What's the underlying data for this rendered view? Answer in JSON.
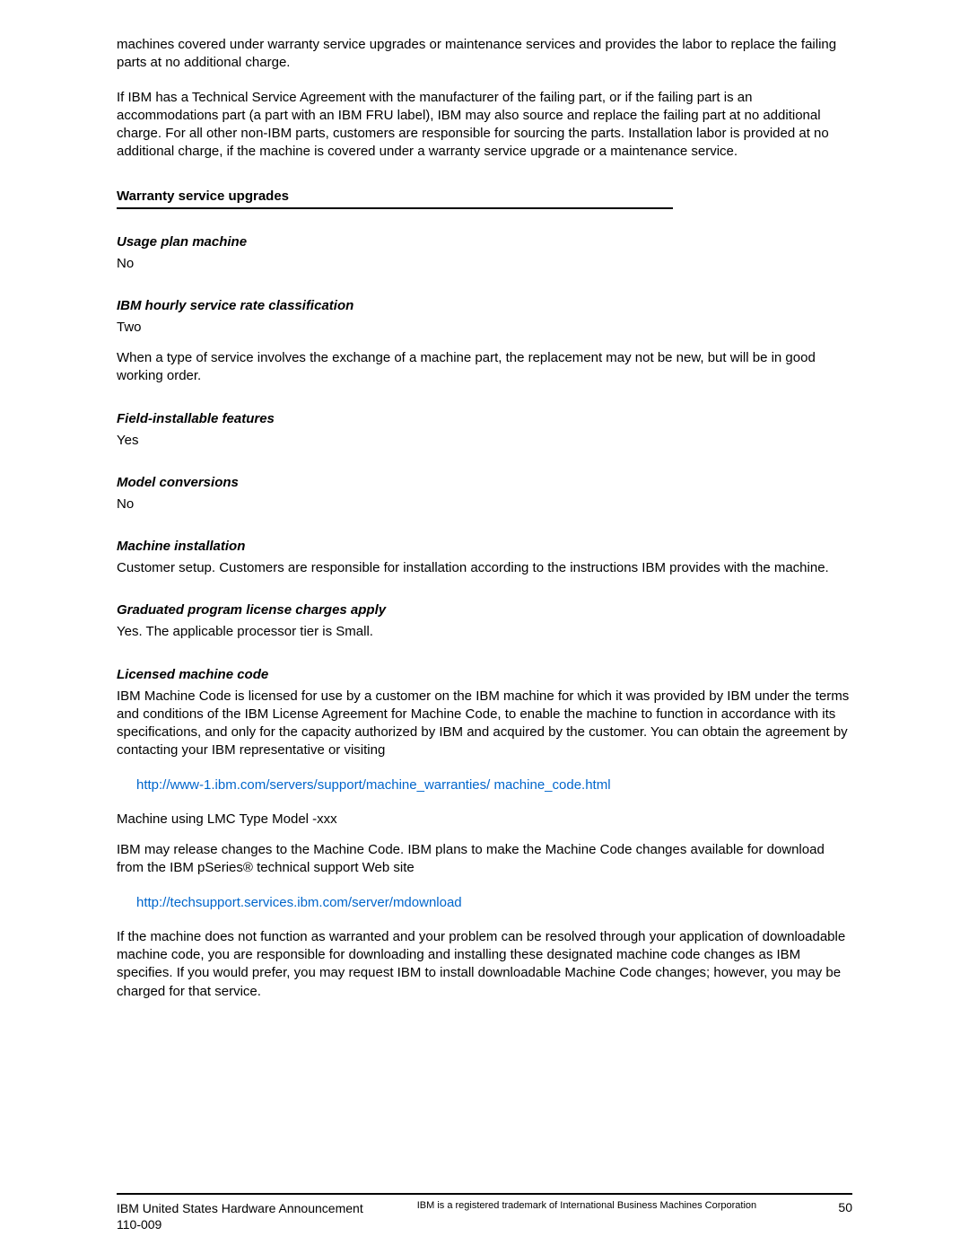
{
  "intro": {
    "p1": "machines covered under warranty service upgrades or maintenance services and provides the labor to replace the failing parts at no additional charge.",
    "p2": "If IBM has a Technical Service Agreement with the manufacturer of the failing part, or if the failing part is an accommodations part (a part with an IBM FRU label), IBM may also source and replace the failing part at no additional charge. For all other non-IBM parts, customers are responsible for sourcing the parts. Installation labor is provided at no additional charge, if the machine is covered under a warranty service upgrade or a maintenance service."
  },
  "section_heading": "Warranty service upgrades",
  "usage_plan": {
    "heading": "Usage plan machine",
    "value": "No"
  },
  "hourly_service": {
    "heading": "IBM hourly service rate classification",
    "value": "Two",
    "note": "When a type of service involves the exchange of a machine part, the replacement may not be new, but will be in good working order."
  },
  "field_installable": {
    "heading": "Field-installable features",
    "value": "Yes"
  },
  "model_conversions": {
    "heading": "Model conversions",
    "value": "No"
  },
  "machine_installation": {
    "heading": "Machine installation",
    "text": "Customer setup. Customers are responsible for installation according to the instructions IBM provides with the machine."
  },
  "graduated_program": {
    "heading": "Graduated program license charges apply",
    "text": "Yes. The applicable processor tier is Small."
  },
  "licensed_machine_code": {
    "heading": "Licensed machine code",
    "p1": "IBM Machine Code is licensed for use by a customer on the IBM machine for which it was provided by IBM under the terms and conditions of the IBM License Agreement for Machine Code, to enable the machine to function in accordance with its specifications, and only for the capacity authorized by IBM and acquired by the customer. You can obtain the agreement by contacting your IBM representative or visiting",
    "link1": "http://www-1.ibm.com/servers/support/machine_warranties/ machine_code.html",
    "p2": "Machine using LMC Type Model -xxx",
    "p3": "IBM may release changes to the Machine Code. IBM plans to make the Machine Code changes available for download from the IBM pSeries® technical support Web site",
    "link2": "http://techsupport.services.ibm.com/server/mdownload",
    "p4": "If the machine does not function as warranted and your problem can be resolved through your application of downloadable machine code, you are responsible for downloading and installing these designated machine code changes as IBM specifies. If you would prefer, you may request IBM to install downloadable Machine Code changes; however, you may be charged for that service."
  },
  "footer": {
    "left_line1": "IBM United States Hardware Announcement",
    "left_line2": "110-009",
    "center": "IBM is a registered trademark of International Business Machines Corporation",
    "page_number": "50"
  },
  "colors": {
    "link_color": "#0066cc",
    "text_color": "#000000",
    "background": "#ffffff",
    "rule_color": "#000000"
  }
}
